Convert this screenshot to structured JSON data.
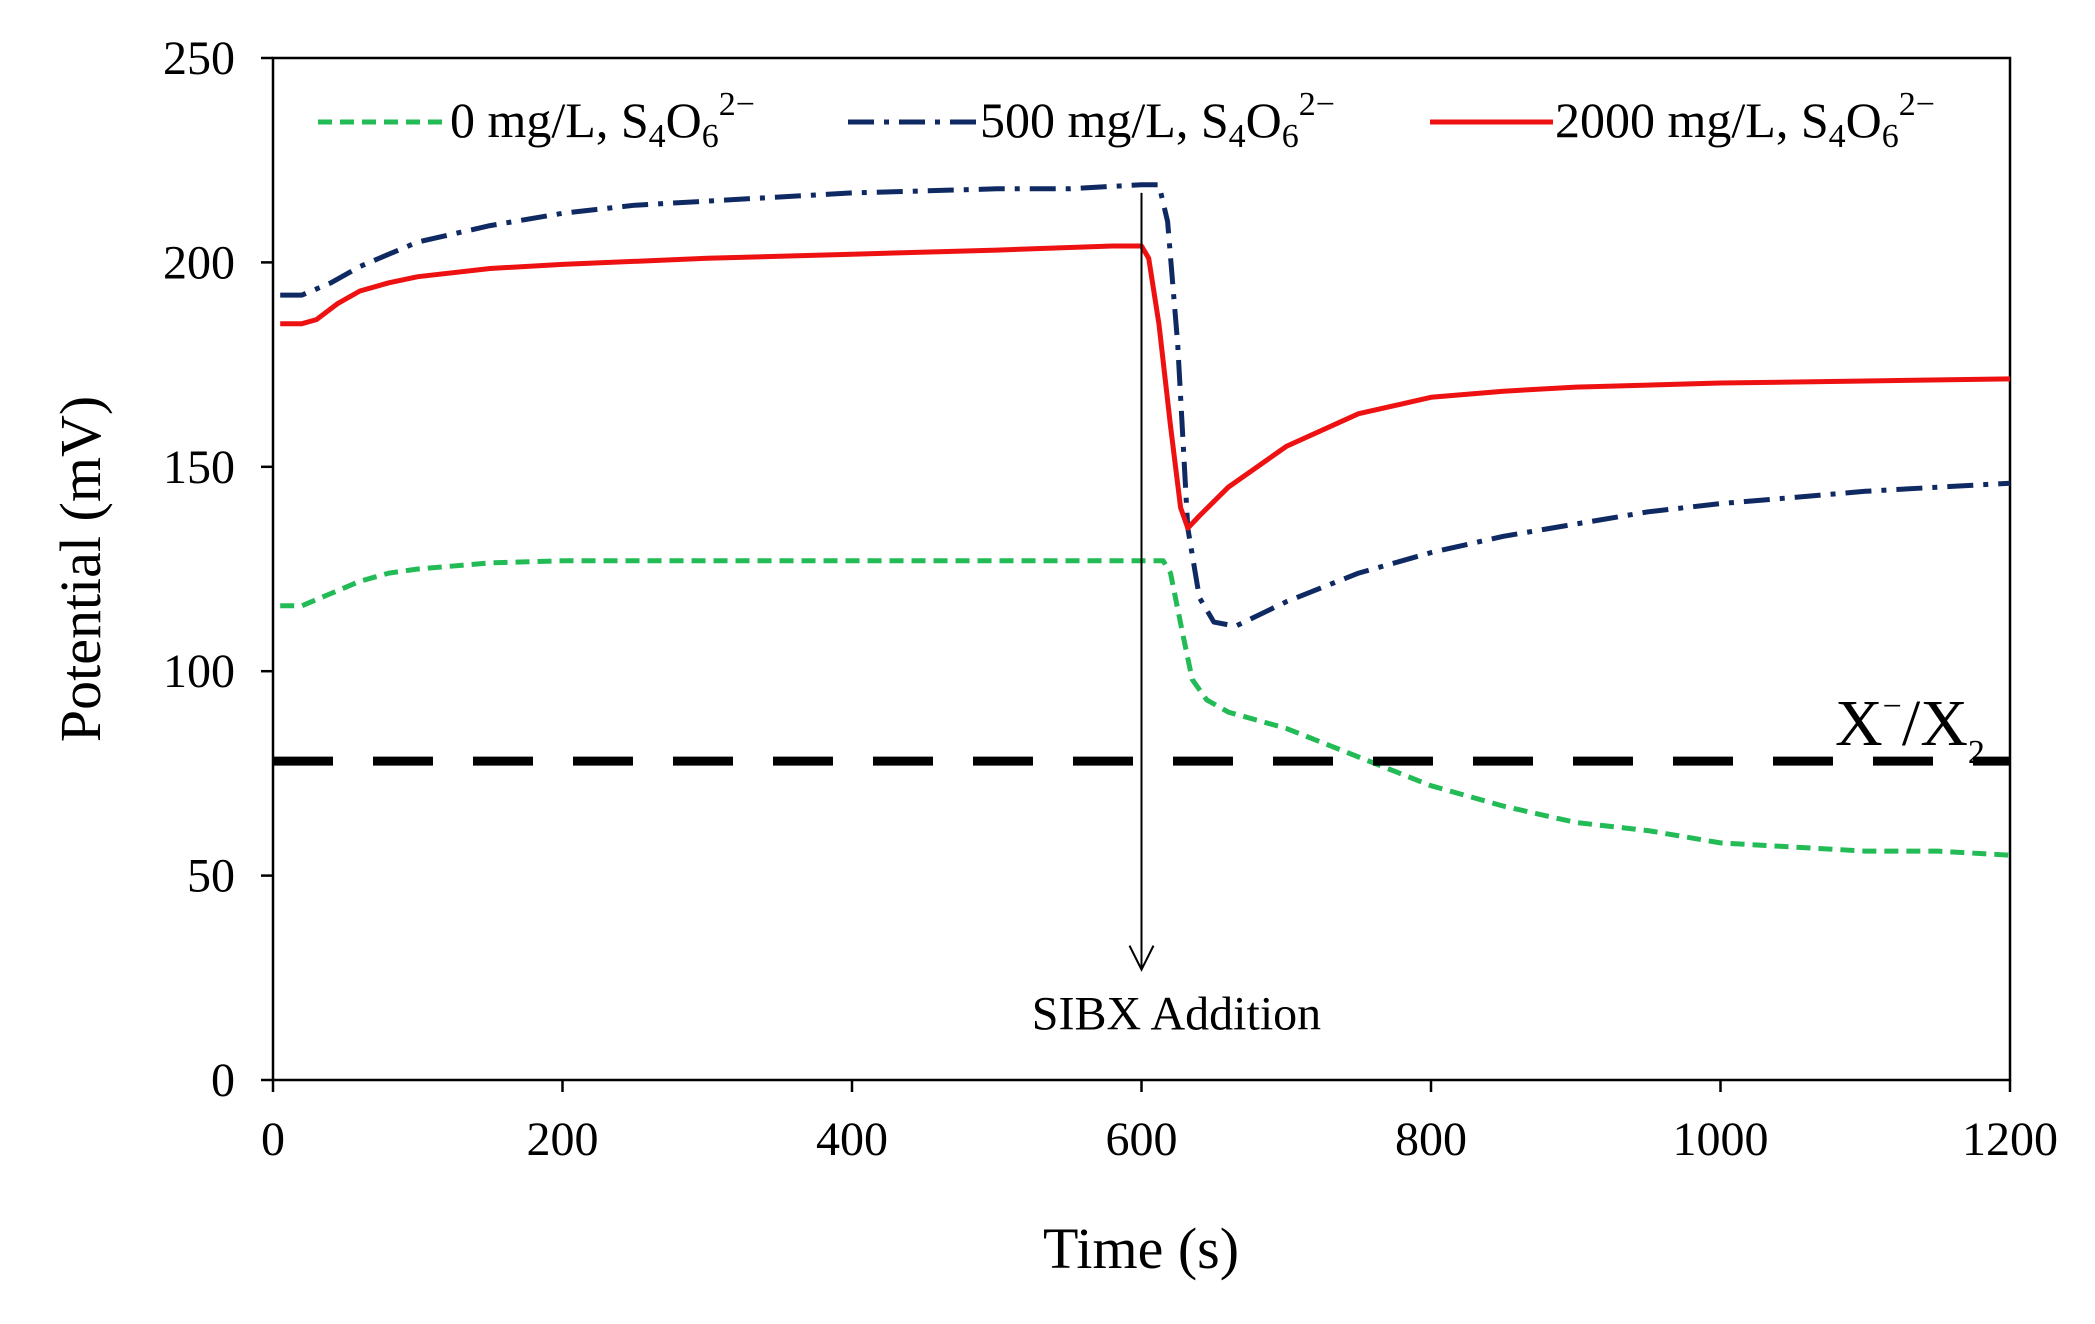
{
  "chart_data": {
    "type": "line",
    "title": "",
    "xlabel": "Time (s)",
    "ylabel": "Potential (mV)",
    "xlim": [
      0,
      1200
    ],
    "ylim": [
      0,
      250
    ],
    "xticks": [
      0,
      200,
      400,
      600,
      800,
      1000,
      1200
    ],
    "yticks": [
      0,
      50,
      100,
      150,
      200,
      250
    ],
    "grid": false,
    "legend_position": "top",
    "species": {
      "S": "S",
      "S_sub": "4",
      "O": "O",
      "O_sub": "6",
      "charge": "2−"
    },
    "series": [
      {
        "name": "0 mg/L, S4O6 2−",
        "legend_prefix": "0 mg/L, ",
        "color": "#22bb55",
        "style": "dashed",
        "points": [
          [
            5,
            116
          ],
          [
            20,
            116
          ],
          [
            40,
            119
          ],
          [
            60,
            122
          ],
          [
            80,
            124
          ],
          [
            100,
            125
          ],
          [
            150,
            126.5
          ],
          [
            200,
            127
          ],
          [
            300,
            127
          ],
          [
            400,
            127
          ],
          [
            500,
            127
          ],
          [
            600,
            127
          ],
          [
            615,
            127
          ],
          [
            620,
            124
          ],
          [
            628,
            110
          ],
          [
            635,
            98
          ],
          [
            645,
            93
          ],
          [
            660,
            90
          ],
          [
            700,
            86
          ],
          [
            750,
            79
          ],
          [
            800,
            72
          ],
          [
            850,
            67
          ],
          [
            900,
            63
          ],
          [
            950,
            61
          ],
          [
            1000,
            58
          ],
          [
            1050,
            57
          ],
          [
            1100,
            56
          ],
          [
            1150,
            56
          ],
          [
            1200,
            55
          ]
        ]
      },
      {
        "name": "500 mg/L, S4O6 2−",
        "legend_prefix": "500 mg/L, ",
        "color": "#0f2a63",
        "style": "dashdot",
        "points": [
          [
            5,
            192
          ],
          [
            20,
            192
          ],
          [
            40,
            195
          ],
          [
            60,
            199
          ],
          [
            80,
            202
          ],
          [
            100,
            205
          ],
          [
            150,
            209
          ],
          [
            200,
            212
          ],
          [
            250,
            214
          ],
          [
            300,
            215
          ],
          [
            350,
            216
          ],
          [
            400,
            217
          ],
          [
            450,
            217.5
          ],
          [
            500,
            218
          ],
          [
            550,
            218
          ],
          [
            600,
            219
          ],
          [
            612,
            219
          ],
          [
            618,
            210
          ],
          [
            625,
            180
          ],
          [
            632,
            135
          ],
          [
            640,
            118
          ],
          [
            650,
            112
          ],
          [
            665,
            111
          ],
          [
            700,
            117
          ],
          [
            750,
            124
          ],
          [
            800,
            129
          ],
          [
            850,
            133
          ],
          [
            900,
            136
          ],
          [
            950,
            139
          ],
          [
            1000,
            141
          ],
          [
            1050,
            142.5
          ],
          [
            1100,
            144
          ],
          [
            1150,
            145
          ],
          [
            1200,
            146
          ]
        ]
      },
      {
        "name": "2000 mg/L, S4O6 2−",
        "legend_prefix": "2000 mg/L, ",
        "color": "#ee1111",
        "style": "solid",
        "points": [
          [
            5,
            185
          ],
          [
            20,
            185
          ],
          [
            30,
            186
          ],
          [
            45,
            190
          ],
          [
            60,
            193
          ],
          [
            80,
            195
          ],
          [
            100,
            196.5
          ],
          [
            150,
            198.5
          ],
          [
            200,
            199.5
          ],
          [
            300,
            201
          ],
          [
            400,
            202
          ],
          [
            500,
            203
          ],
          [
            580,
            204
          ],
          [
            600,
            204
          ],
          [
            605,
            201
          ],
          [
            612,
            185
          ],
          [
            620,
            160
          ],
          [
            627,
            140
          ],
          [
            632,
            135
          ],
          [
            640,
            138
          ],
          [
            660,
            145
          ],
          [
            700,
            155
          ],
          [
            750,
            163
          ],
          [
            800,
            167
          ],
          [
            850,
            168.5
          ],
          [
            900,
            169.5
          ],
          [
            1000,
            170.5
          ],
          [
            1100,
            171
          ],
          [
            1200,
            171.5
          ]
        ]
      },
      {
        "name": "X−/X2",
        "color": "#000000",
        "style": "long-dash",
        "points": [
          [
            0,
            78
          ],
          [
            1200,
            78
          ]
        ]
      }
    ],
    "reference_label": {
      "base": "X",
      "sup": "−",
      "slash": "/X",
      "sub": "2"
    },
    "annotations": [
      {
        "text": "SIBX Addition",
        "arrow_from": [
          600,
          217
        ],
        "arrow_to": [
          600,
          27
        ]
      }
    ]
  }
}
